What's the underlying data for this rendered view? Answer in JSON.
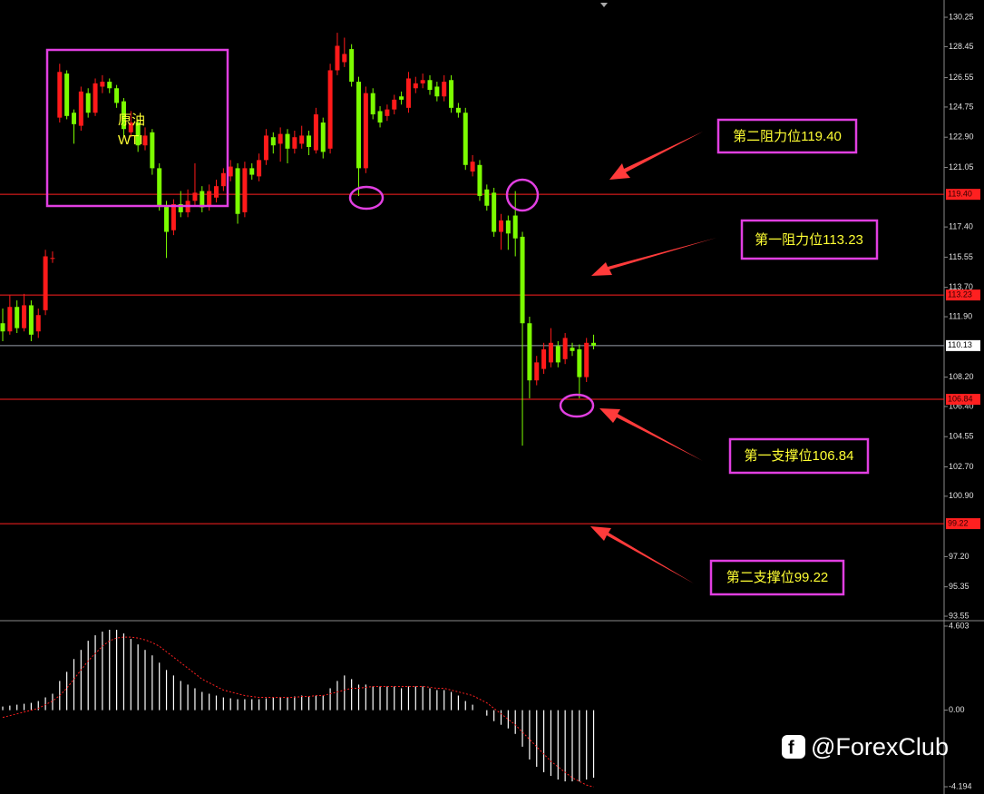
{
  "chart_data": [
    {
      "type": "candlestick",
      "up_color": "#ff1a1a",
      "down_color": "#7cfc00",
      "level_color": "#ff2020",
      "last_color": "#9aa0aa",
      "ylim": [
        93.33,
        131.03
      ],
      "yticks": [
        130.25,
        128.45,
        126.55,
        124.75,
        {
          "value": 122.9,
          "label": "122.90"
        },
        121.05,
        {
          "value": 117.4,
          "label": "117.40"
        },
        115.55,
        {
          "value": 113.7,
          "label": "113.70"
        },
        {
          "value": 111.9,
          "label": "111.90"
        },
        {
          "value": 108.2,
          "label": "108.20"
        },
        {
          "value": 106.4,
          "label": "106.40"
        },
        104.55,
        {
          "value": 102.7,
          "label": "102.70"
        },
        {
          "value": 100.9,
          "label": "100.90"
        },
        {
          "value": 97.2,
          "label": "97.20"
        },
        95.35,
        93.55
      ],
      "levels": [
        {
          "value": 119.4,
          "label": "119.40"
        },
        {
          "value": 113.23,
          "label": "113.23"
        },
        {
          "value": 106.84,
          "label": "106.84"
        },
        {
          "value": 99.22,
          "label": "99.22"
        }
      ],
      "last": 110.13,
      "open": [
        111.5,
        111.0,
        112.5,
        111.2,
        112.6,
        111.0,
        112.3,
        115.5,
        124.1,
        126.8,
        124.4,
        123.6,
        125.6,
        124.4,
        126.0,
        126.3,
        125.9,
        125.1,
        123.2,
        123.8,
        122.4,
        123.2,
        121.0,
        118.7,
        117.2,
        118.8,
        118.3,
        119.0,
        119.6,
        118.7,
        119.2,
        119.9,
        120.5,
        121.0,
        118.3,
        121.0,
        120.5,
        121.5,
        122.9,
        122.5,
        123.1,
        122.2,
        122.5,
        123.0,
        122.1,
        123.8,
        122.2,
        127.0,
        127.5,
        128.3,
        126.3,
        121.0,
        125.6,
        124.5,
        124.2,
        124.6,
        125.4,
        124.7,
        125.9,
        126.2,
        126.4,
        126.0,
        125.4,
        126.4,
        124.7,
        124.4,
        120.8,
        121.2,
        119.7,
        119.5,
        117.1,
        117.8,
        118.1,
        116.8,
        111.5,
        108.0,
        108.7,
        109.1,
        110.1,
        109.3,
        110.0,
        109.9,
        108.2,
        110.3
      ],
      "high": [
        112.4,
        113.2,
        112.9,
        113.3,
        112.9,
        112.4,
        116.0,
        115.9,
        127.4,
        127.0,
        124.6,
        126.0,
        125.9,
        126.5,
        126.7,
        126.5,
        126.1,
        125.3,
        124.5,
        124.0,
        123.5,
        123.4,
        121.3,
        119.0,
        119.1,
        119.6,
        119.7,
        121.3,
        119.9,
        120.0,
        120.3,
        121.0,
        121.5,
        121.3,
        121.4,
        121.3,
        121.9,
        123.4,
        123.2,
        123.5,
        123.4,
        123.3,
        123.6,
        123.3,
        124.7,
        124.1,
        127.4,
        129.3,
        129.0,
        128.6,
        126.6,
        126.0,
        125.9,
        124.8,
        124.9,
        125.5,
        125.7,
        126.9,
        126.6,
        126.8,
        126.7,
        126.3,
        126.7,
        126.7,
        125.0,
        124.7,
        121.8,
        121.5,
        120.0,
        119.8,
        118.2,
        118.1,
        119.6,
        117.1,
        111.9,
        109.5,
        110.3,
        111.2,
        110.4,
        110.9,
        110.3,
        110.2,
        110.6,
        110.8
      ],
      "low": [
        110.4,
        110.8,
        110.9,
        111.0,
        110.4,
        110.6,
        112.0,
        115.2,
        123.8,
        124.0,
        122.5,
        123.3,
        124.1,
        124.2,
        125.6,
        125.6,
        124.7,
        122.9,
        122.9,
        122.0,
        122.1,
        120.6,
        118.4,
        115.5,
        116.9,
        118.0,
        118.0,
        118.7,
        118.3,
        118.4,
        118.9,
        119.6,
        120.2,
        117.6,
        118.0,
        120.3,
        120.2,
        121.2,
        121.9,
        121.4,
        121.3,
        121.9,
        122.2,
        121.8,
        121.9,
        121.6,
        121.9,
        126.7,
        127.2,
        126.0,
        119.3,
        120.7,
        124.0,
        123.5,
        123.9,
        124.3,
        124.9,
        124.4,
        125.6,
        125.9,
        125.5,
        125.1,
        125.1,
        124.4,
        124.1,
        120.9,
        120.5,
        119.0,
        118.4,
        116.8,
        116.0,
        116.0,
        115.6,
        104.0,
        106.9,
        107.7,
        108.4,
        108.8,
        108.8,
        109.0,
        109.5,
        106.9,
        107.9,
        109.9
      ],
      "close": [
        111.0,
        112.5,
        111.2,
        112.6,
        110.8,
        112.0,
        115.6,
        115.5,
        126.9,
        124.2,
        123.7,
        125.7,
        124.4,
        126.2,
        126.3,
        125.9,
        125.0,
        123.4,
        123.8,
        122.4,
        123.0,
        121.0,
        118.7,
        117.1,
        118.8,
        118.3,
        119.0,
        119.5,
        118.6,
        119.6,
        119.9,
        120.7,
        121.1,
        118.2,
        121.0,
        120.6,
        121.5,
        123.0,
        122.4,
        123.1,
        122.2,
        122.9,
        123.0,
        122.3,
        124.3,
        122.0,
        127.0,
        128.5,
        128.0,
        126.3,
        121.0,
        125.6,
        124.3,
        123.8,
        124.6,
        125.2,
        125.2,
        126.5,
        126.2,
        126.4,
        125.8,
        125.4,
        126.3,
        124.7,
        124.4,
        121.2,
        121.4,
        119.3,
        118.7,
        117.1,
        117.8,
        117.0,
        116.7,
        111.5,
        108.0,
        109.1,
        109.9,
        110.3,
        109.1,
        110.6,
        109.8,
        108.2,
        110.3,
        110.13
      ],
      "annotations": [
        "第二阻力位119.40",
        "第一阻力位113.23",
        "第一支撑位106.84",
        "第二支撑位99.22",
        "原油",
        "WTI"
      ]
    },
    {
      "type": "macd",
      "hist_color": "#ffffff",
      "signal_color": "#ff2020",
      "ylim": [
        -4.59,
        4.85
      ],
      "yticks": [
        4.603,
        {
          "value": 0,
          "label": "0.00"
        },
        -4.194
      ],
      "histogram": [
        0.2,
        0.25,
        0.3,
        0.35,
        0.4,
        0.5,
        0.7,
        0.9,
        1.6,
        2.1,
        2.8,
        3.3,
        3.8,
        4.1,
        4.3,
        4.4,
        4.4,
        4.2,
        3.9,
        3.6,
        3.3,
        3.0,
        2.6,
        2.2,
        1.9,
        1.6,
        1.4,
        1.2,
        1.0,
        0.9,
        0.8,
        0.7,
        0.65,
        0.6,
        0.6,
        0.6,
        0.6,
        0.65,
        0.7,
        0.7,
        0.7,
        0.75,
        0.8,
        0.75,
        0.8,
        0.8,
        1.2,
        1.6,
        1.9,
        1.7,
        1.4,
        1.4,
        1.3,
        1.3,
        1.3,
        1.3,
        1.2,
        1.3,
        1.3,
        1.3,
        1.2,
        1.1,
        1.1,
        1.0,
        0.8,
        0.5,
        0.3,
        0.0,
        -0.3,
        -0.6,
        -0.8,
        -1.0,
        -1.3,
        -2.0,
        -2.7,
        -3.1,
        -3.4,
        -3.6,
        -3.8,
        -3.9,
        -3.9,
        -3.9,
        -3.8,
        -3.7
      ],
      "signal": [
        -0.4,
        -0.3,
        -0.2,
        -0.1,
        0.0,
        0.1,
        0.3,
        0.5,
        0.8,
        1.2,
        1.7,
        2.2,
        2.7,
        3.1,
        3.5,
        3.8,
        3.95,
        4.0,
        4.0,
        3.95,
        3.85,
        3.7,
        3.5,
        3.2,
        2.9,
        2.6,
        2.3,
        2.0,
        1.7,
        1.5,
        1.3,
        1.1,
        1.0,
        0.9,
        0.8,
        0.75,
        0.7,
        0.7,
        0.7,
        0.7,
        0.7,
        0.7,
        0.75,
        0.75,
        0.8,
        0.8,
        0.9,
        1.0,
        1.1,
        1.2,
        1.2,
        1.25,
        1.3,
        1.3,
        1.3,
        1.3,
        1.3,
        1.3,
        1.3,
        1.3,
        1.25,
        1.2,
        1.2,
        1.1,
        1.0,
        0.9,
        0.8,
        0.6,
        0.4,
        0.1,
        -0.2,
        -0.5,
        -0.8,
        -1.2,
        -1.6,
        -2.0,
        -2.4,
        -2.8,
        -3.1,
        -3.4,
        -3.7,
        -3.9,
        -4.1,
        -4.2
      ]
    }
  ],
  "watermark": "@ForexClub"
}
